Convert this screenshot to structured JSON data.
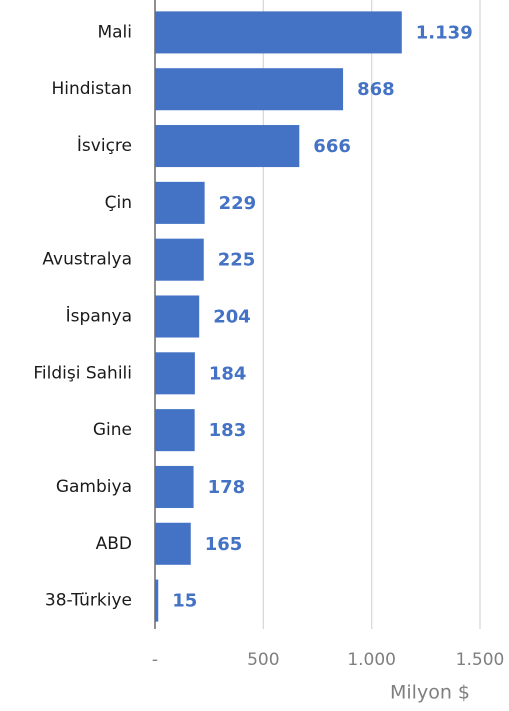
{
  "chart_data": {
    "type": "bar",
    "orientation": "horizontal",
    "categories": [
      "Mali",
      "Hindistan",
      "İsviçre",
      "Çin",
      "Avustralya",
      "İspanya",
      "Fildişi Sahili",
      "Gine",
      "Gambiya",
      "ABD",
      "38-Türkiye"
    ],
    "values": [
      1139,
      868,
      666,
      229,
      225,
      204,
      184,
      183,
      178,
      165,
      15
    ],
    "value_labels": [
      "1.139",
      "868",
      "666",
      "229",
      "225",
      "204",
      "184",
      "183",
      "178",
      "165",
      "15"
    ],
    "color": "#4472c4",
    "xlim": [
      0,
      1500
    ],
    "xticks": [
      {
        "value": 0,
        "label": "-"
      },
      500,
      {
        "value": 1000,
        "label": "1.000"
      },
      {
        "value": 1500,
        "label": "1.500"
      }
    ],
    "x_label": "Milyon $",
    "grid": true
  }
}
